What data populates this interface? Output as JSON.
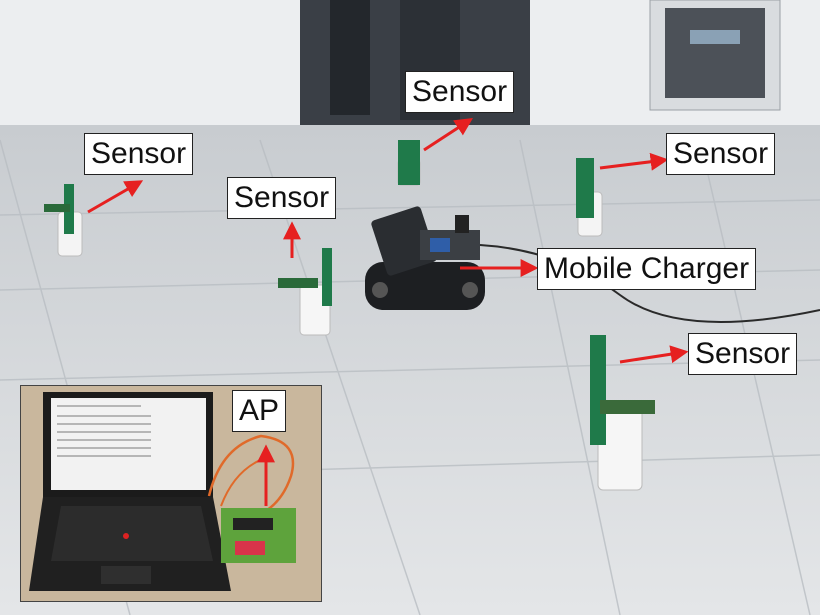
{
  "labels": {
    "sensor_top": "Sensor",
    "sensor_left": "Sensor",
    "sensor_mid": "Sensor",
    "sensor_right": "Sensor",
    "sensor_bottom_right": "Sensor",
    "mobile_charger": "Mobile Charger",
    "ap": "AP"
  },
  "colors": {
    "arrow": "#e62020",
    "sensor_board": "#1f7a4a",
    "floor": "#d8dcdf",
    "wall": "#eef0f2",
    "inset_bg": "#c9b79d"
  }
}
